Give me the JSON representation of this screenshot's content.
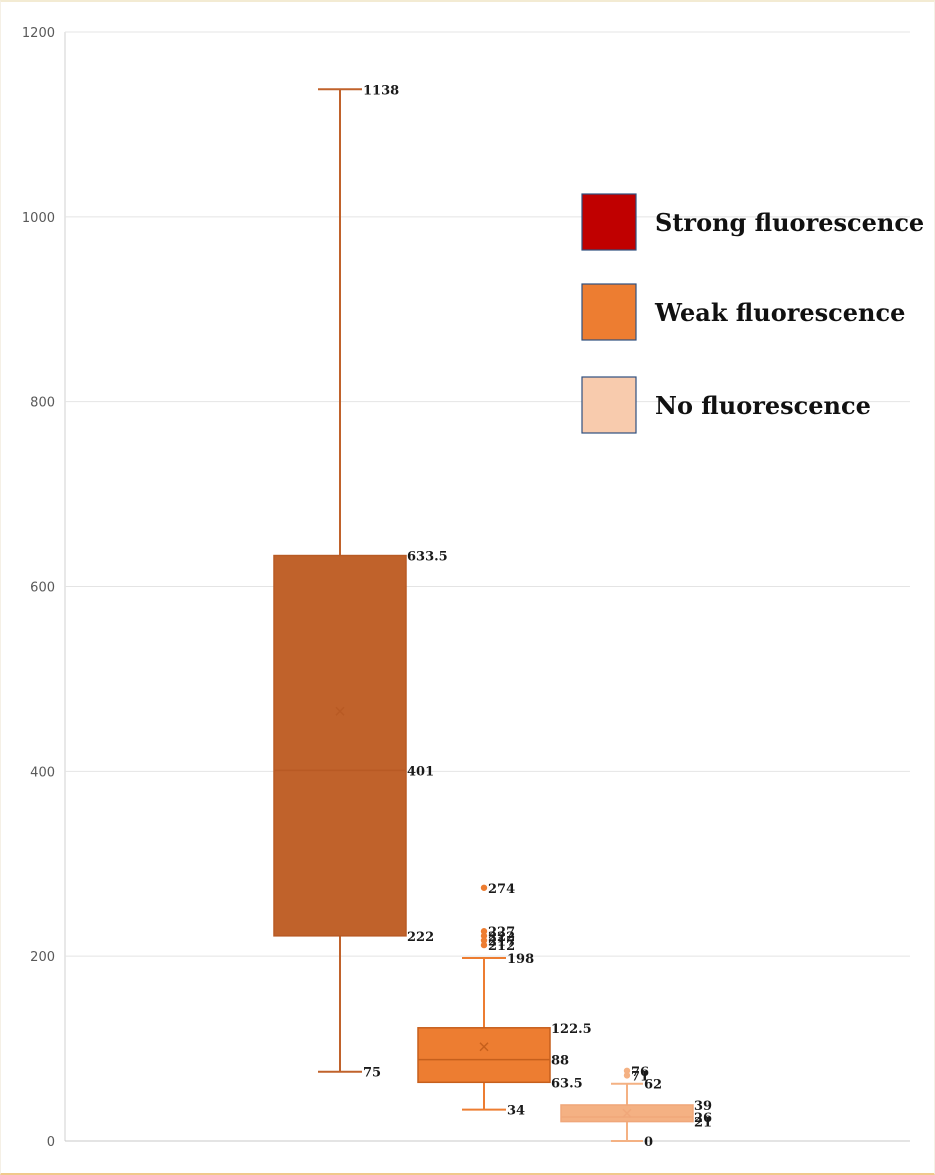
{
  "chart_data": {
    "type": "boxplot",
    "title": "",
    "xlabel": "",
    "ylabel": "",
    "ylim": [
      0,
      1200
    ],
    "y_ticks": [
      0,
      200,
      400,
      600,
      800,
      1000,
      1200
    ],
    "grid": true,
    "legend_position": "top-right",
    "series": [
      {
        "name": "Strong fluorescence",
        "color": "#c0622b",
        "legend_color": "#c00000",
        "min": 75,
        "q1": 222,
        "median": 401,
        "q3": 633.5,
        "max": 1138,
        "mean": 465,
        "outliers": [],
        "labels": [
          {
            "value": 1138,
            "text": "1138",
            "anchor": "max"
          },
          {
            "value": 633.5,
            "text": "633.5",
            "anchor": "box"
          },
          {
            "value": 401,
            "text": "401",
            "anchor": "box"
          },
          {
            "value": 222,
            "text": "222",
            "anchor": "box"
          },
          {
            "value": 75,
            "text": "75",
            "anchor": "max"
          }
        ]
      },
      {
        "name": "Weak fluorescence",
        "color": "#ed7d31",
        "legend_color": "#ed7d31",
        "min": 34,
        "q1": 63.5,
        "median": 88,
        "q3": 122.5,
        "max": 198,
        "mean": 102,
        "outliers": [
          274,
          227,
          222,
          217,
          212
        ],
        "labels": [
          {
            "value": 274,
            "text": "274",
            "anchor": "out"
          },
          {
            "value": 227,
            "text": "227",
            "anchor": "out"
          },
          {
            "value": 222,
            "text": "222",
            "anchor": "out"
          },
          {
            "value": 217,
            "text": "217",
            "anchor": "out"
          },
          {
            "value": 212,
            "text": "212",
            "anchor": "out"
          },
          {
            "value": 198,
            "text": "198",
            "anchor": "max"
          },
          {
            "value": 122.5,
            "text": "122.5",
            "anchor": "box"
          },
          {
            "value": 88,
            "text": "88",
            "anchor": "box"
          },
          {
            "value": 63.5,
            "text": "63.5",
            "anchor": "box"
          },
          {
            "value": 34,
            "text": "34",
            "anchor": "max"
          }
        ]
      },
      {
        "name": "No fluorescence",
        "color": "#f4b183",
        "legend_color": "#f8cbad",
        "min": 0,
        "q1": 21,
        "median": 26,
        "q3": 39,
        "max": 62,
        "mean": 30,
        "outliers": [
          76,
          71
        ],
        "labels": [
          {
            "value": 76,
            "text": "76",
            "anchor": "out"
          },
          {
            "value": 71,
            "text": "71",
            "anchor": "out"
          },
          {
            "value": 62,
            "text": "62",
            "anchor": "max"
          },
          {
            "value": 39,
            "text": "39",
            "anchor": "box"
          },
          {
            "value": 26,
            "text": "26",
            "anchor": "box"
          },
          {
            "value": 21,
            "text": "21",
            "anchor": "box"
          },
          {
            "value": 0,
            "text": "0",
            "anchor": "max"
          }
        ]
      }
    ]
  }
}
